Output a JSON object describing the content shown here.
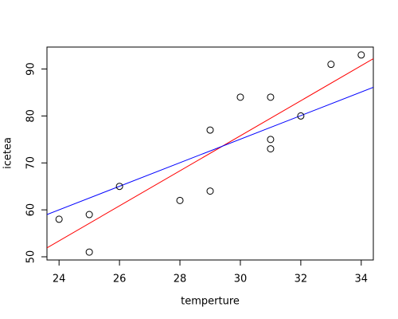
{
  "chart_data": {
    "type": "scatter",
    "xlabel": "temperture",
    "ylabel": "icetea",
    "x": [
      24,
      25,
      25,
      26,
      28,
      29,
      29,
      30,
      31,
      31,
      31,
      32,
      33,
      34
    ],
    "values": [
      58,
      59,
      51,
      65,
      62,
      77,
      64,
      84,
      84,
      75,
      73,
      80,
      91,
      93
    ],
    "color": "#000000",
    "lines": [
      {
        "color": "#ff0000",
        "x": [
          23.6,
          34.4
        ],
        "values": [
          51.9,
          92.2
        ]
      },
      {
        "color": "#0000ff",
        "x": [
          23.6,
          34.4
        ],
        "values": [
          59.0,
          86.1
        ]
      }
    ],
    "xlim": [
      23.6,
      34.4
    ],
    "ylim": [
      49.32,
      94.68
    ],
    "xticks": [
      24,
      26,
      28,
      30,
      32,
      34
    ],
    "yticks": [
      50,
      60,
      70,
      80,
      90
    ],
    "grid": false
  }
}
